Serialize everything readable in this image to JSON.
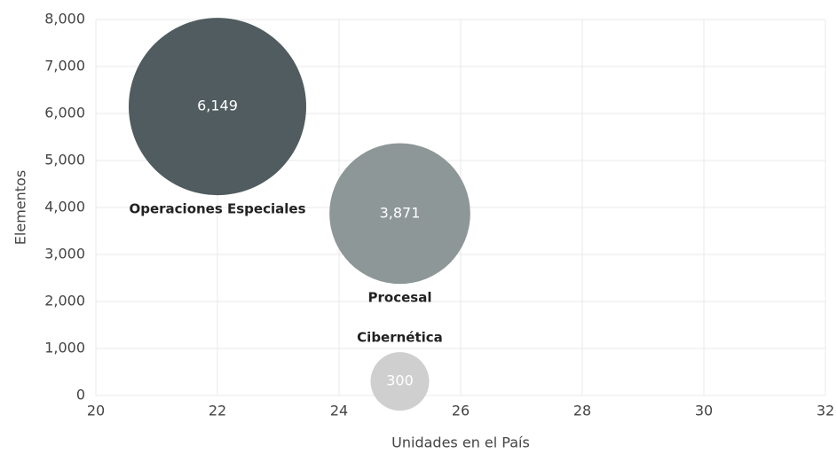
{
  "chart_data": {
    "type": "bubble",
    "xlabel": "Unidades en el País",
    "ylabel": "Elementos",
    "categories": [
      "Operaciones Especiales",
      "Procesal",
      "Cibernética"
    ],
    "x": [
      22,
      25,
      25
    ],
    "values": [
      6149,
      3871,
      300
    ],
    "value_labels": [
      "6,149",
      "3,871",
      "300"
    ],
    "colors": [
      "#505c5f",
      "#8e9797",
      "#cfcfcf"
    ],
    "xlim": [
      20,
      32
    ],
    "xticks": [
      20,
      22,
      24,
      26,
      28,
      30,
      32
    ],
    "ylim": [
      0,
      8000
    ],
    "yticks": [
      0,
      {
        "value": 1000,
        "label": "1,000"
      },
      {
        "value": 2000,
        "label": "2,000"
      },
      {
        "value": 3000,
        "label": "3,000"
      },
      {
        "value": 4000,
        "label": "4,000"
      },
      {
        "value": 5000,
        "label": "5,000"
      },
      {
        "value": 6000,
        "label": "6,000"
      },
      {
        "value": 7000,
        "label": "7,000"
      },
      {
        "value": 8000,
        "label": "8,000"
      }
    ],
    "grid": true
  }
}
